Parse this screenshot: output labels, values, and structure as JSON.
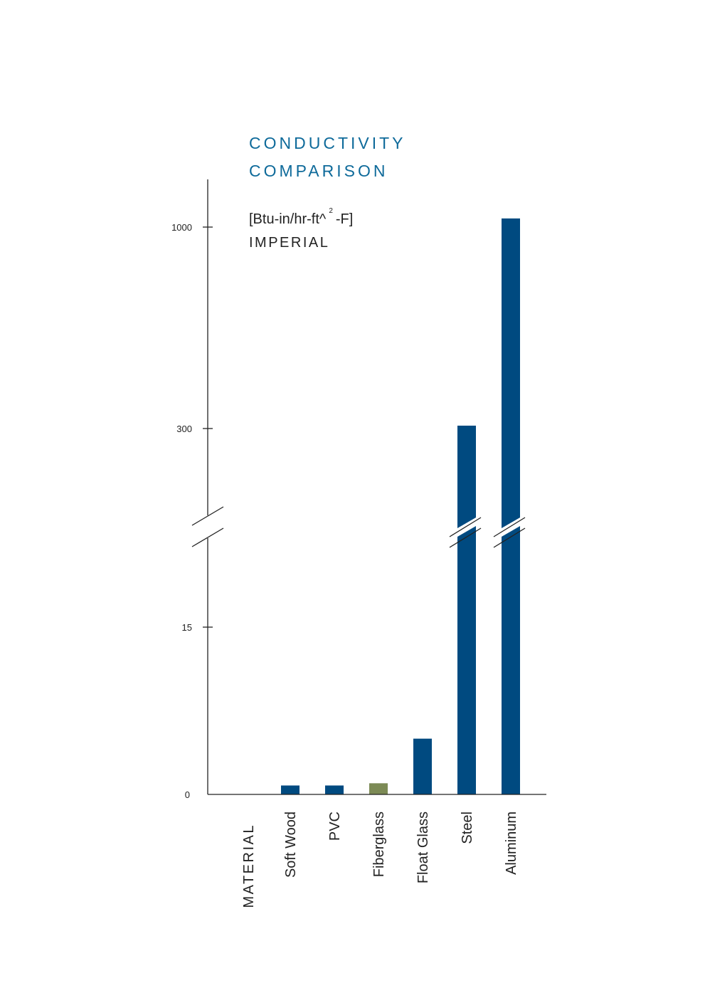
{
  "chart_data": {
    "type": "bar",
    "title_lines": [
      "CONDUCTIVITY",
      "COMPARISON"
    ],
    "unit_label": {
      "prefix": "[Btu-in/hr-ft^",
      "superscript": "2",
      "suffix": "-F]"
    },
    "unit_system": "IMPERIAL",
    "xlabel": "MATERIAL",
    "categories": [
      "Soft Wood",
      "PVC",
      "Fiberglass",
      "Float Glass",
      "Steel",
      "Aluminum"
    ],
    "values": [
      0.8,
      0.8,
      1.0,
      5.0,
      310,
      1030
    ],
    "highlight_category": "Fiberglass",
    "y_ticks": [
      0,
      15,
      300,
      1000
    ],
    "y_axis_break": true,
    "lower_segment_range": [
      0,
      15
    ],
    "upper_segment_range": [
      300,
      1000
    ],
    "colors": {
      "bar": "#004a80",
      "highlight": "#7c8a55",
      "title": "#0e6a9a",
      "axis": "#222222"
    }
  }
}
